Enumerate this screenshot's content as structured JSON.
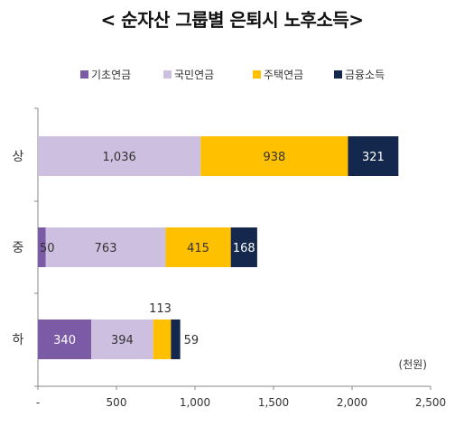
{
  "chart_data": {
    "type": "bar",
    "orientation": "horizontal",
    "stacked": true,
    "title": "< 순자산 그룹별 은퇴시 노후소득>",
    "unit_label": "(천원)",
    "categories": [
      "상",
      "중",
      "하"
    ],
    "series": [
      {
        "name": "기초연금",
        "values": [
          0,
          50,
          340
        ],
        "color": "#7b5aa6"
      },
      {
        "name": "국민연금",
        "values": [
          1036,
          763,
          394
        ],
        "color": "#cdbfe0"
      },
      {
        "name": "주택연금",
        "values": [
          938,
          415,
          113
        ],
        "color": "#ffc000"
      },
      {
        "name": "금융소득",
        "values": [
          321,
          168,
          59
        ],
        "color": "#13284c"
      }
    ],
    "xlim": [
      0,
      2500
    ],
    "xticks": [
      "-",
      "500",
      "1,000",
      "1,500",
      "2,000",
      "2,500"
    ],
    "legend_position": "top",
    "grid": false
  }
}
